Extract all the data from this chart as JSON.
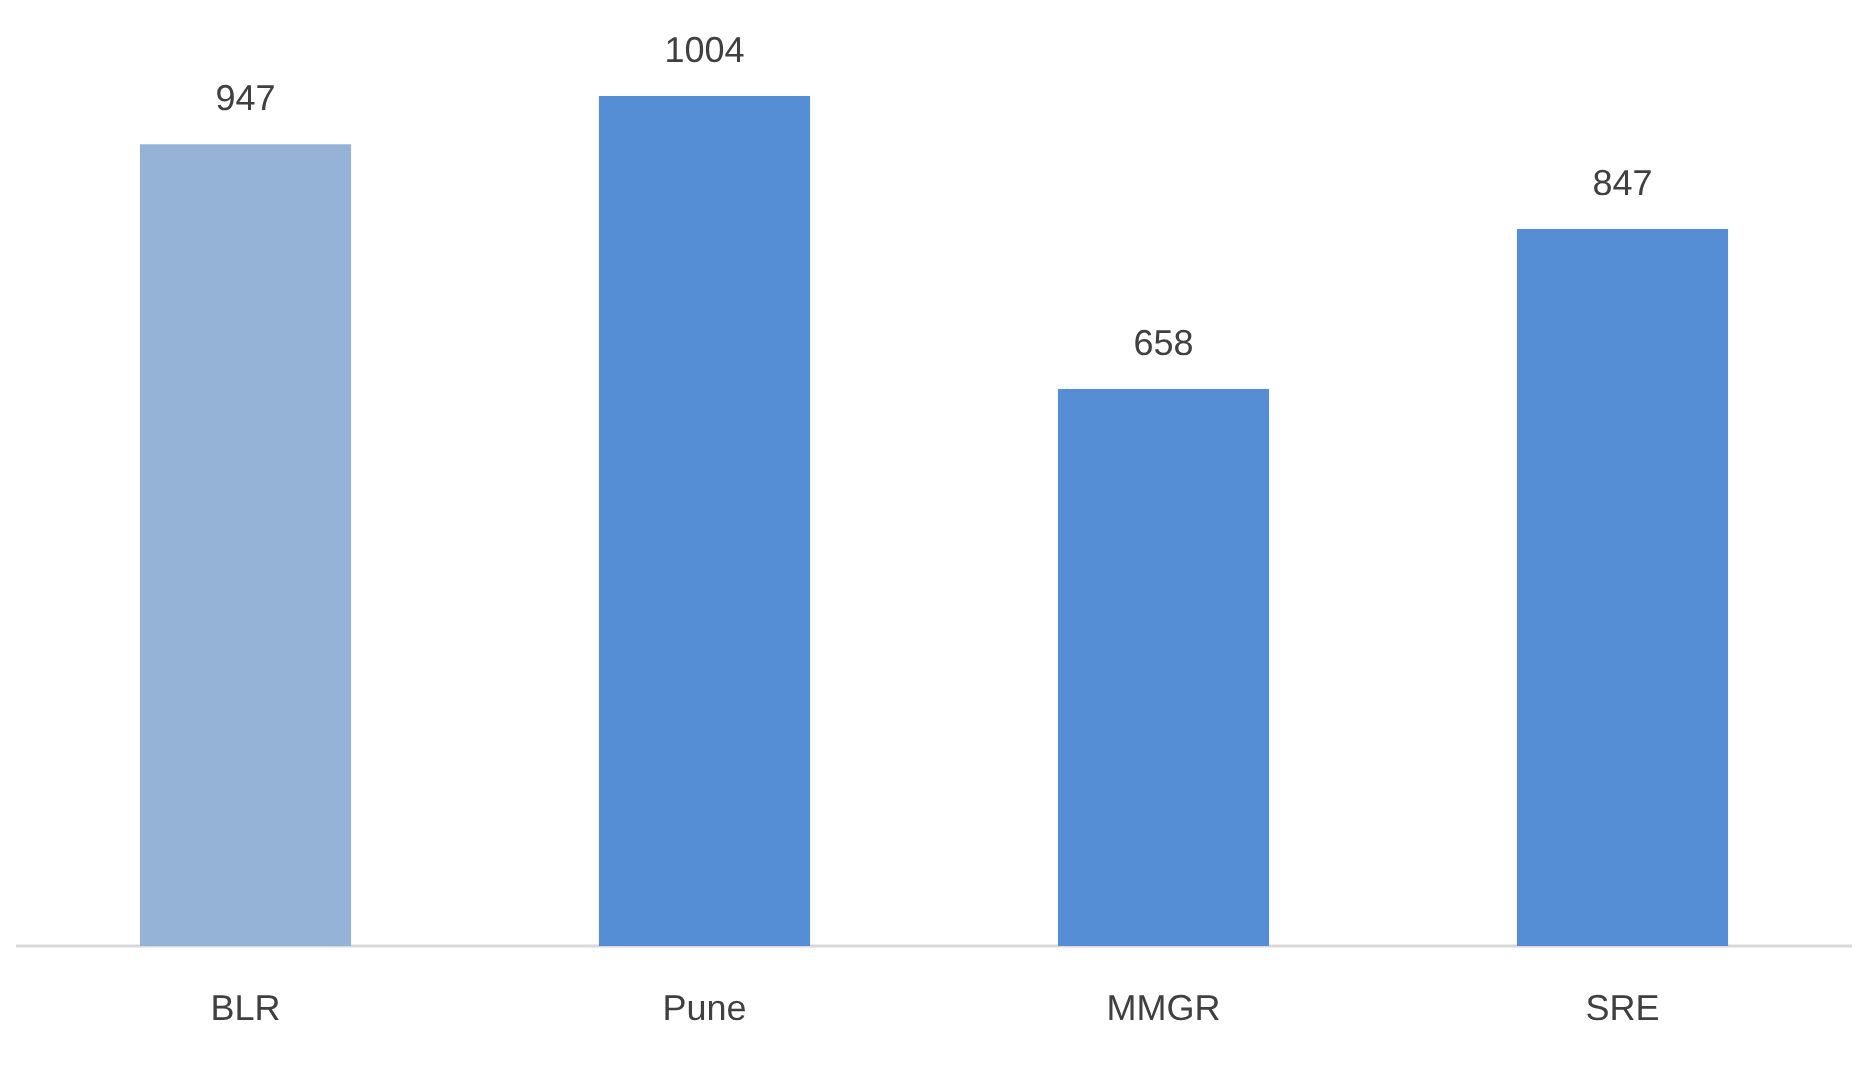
{
  "chart_data": {
    "type": "bar",
    "categories": [
      "BLR",
      "Pune",
      "MMGR",
      "SRE"
    ],
    "values": [
      947,
      1004,
      658,
      847
    ],
    "colors": [
      "#95b3d7",
      "#558ed5",
      "#558ed5",
      "#558ed5"
    ],
    "data_labels": true
  }
}
